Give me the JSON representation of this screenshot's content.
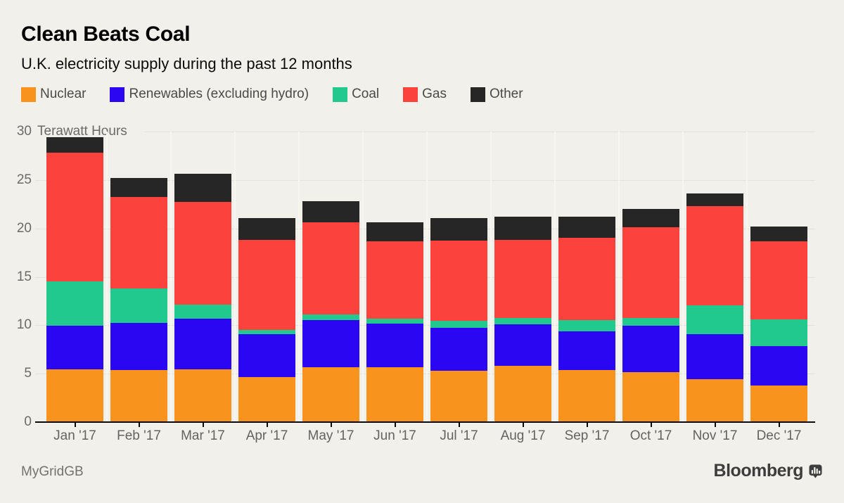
{
  "header": {
    "title": "Clean Beats Coal",
    "subtitle": "U.K. electricity supply during the past 12 months"
  },
  "legend": {
    "items": [
      {
        "label": "Nuclear",
        "color": "#f8931d"
      },
      {
        "label": "Renewables (excluding hydro)",
        "color": "#2b06f2"
      },
      {
        "label": "Coal",
        "color": "#22c98e"
      },
      {
        "label": "Gas",
        "color": "#fb423c"
      },
      {
        "label": "Other",
        "color": "#262626"
      }
    ]
  },
  "chart_data": {
    "type": "bar",
    "stacked": true,
    "title": "Clean Beats Coal",
    "subtitle": "U.K. electricity supply during the past 12 months",
    "unit_label": "Terawatt Hours",
    "categories": [
      "Jan '17",
      "Feb '17",
      "Mar '17",
      "Apr '17",
      "May '17",
      "Jun '17",
      "Jul '17",
      "Aug '17",
      "Sep '17",
      "Oct '17",
      "Nov '17",
      "Dec '17"
    ],
    "series": [
      {
        "name": "Nuclear",
        "color": "#f8931d",
        "values": [
          5.45,
          5.4,
          5.45,
          4.65,
          5.7,
          5.7,
          5.3,
          5.8,
          5.4,
          5.15,
          4.4,
          3.8
        ]
      },
      {
        "name": "Renewables (excluding hydro)",
        "color": "#2b06f2",
        "values": [
          4.5,
          4.85,
          5.25,
          4.45,
          4.8,
          4.5,
          4.4,
          4.3,
          4.0,
          4.8,
          4.7,
          4.05
        ]
      },
      {
        "name": "Coal",
        "color": "#22c98e",
        "values": [
          4.6,
          3.55,
          1.45,
          0.45,
          0.6,
          0.5,
          0.75,
          0.65,
          1.1,
          0.8,
          2.95,
          2.75
        ]
      },
      {
        "name": "Gas",
        "color": "#fb423c",
        "values": [
          13.3,
          9.45,
          10.6,
          9.25,
          9.5,
          8.0,
          8.3,
          8.05,
          8.55,
          9.35,
          10.25,
          8.1
        ]
      },
      {
        "name": "Other",
        "color": "#262626",
        "values": [
          1.55,
          1.95,
          2.9,
          2.3,
          2.2,
          1.9,
          2.3,
          2.4,
          2.15,
          1.9,
          1.3,
          1.5
        ]
      }
    ],
    "totals": [
      29.4,
      25.2,
      25.65,
      21.1,
      22.8,
      20.6,
      21.05,
      21.2,
      21.2,
      22.0,
      23.6,
      20.2
    ],
    "y_axis": {
      "ticks": [
        0,
        5,
        10,
        15,
        20,
        25,
        30
      ],
      "min": 0,
      "max": 30,
      "grid": true
    },
    "ylabel": "Terawatt Hours",
    "xlabel": "",
    "legend_position": "top"
  },
  "footer": {
    "source": "MyGridGB",
    "brand": "Bloomberg"
  },
  "colors": {
    "background": "#f1f0ea",
    "gridline": "#e2e1dd",
    "axis": "#0a0a0a",
    "tick_text": "#6a6a6a",
    "legend_text": "#4a4a4a"
  }
}
